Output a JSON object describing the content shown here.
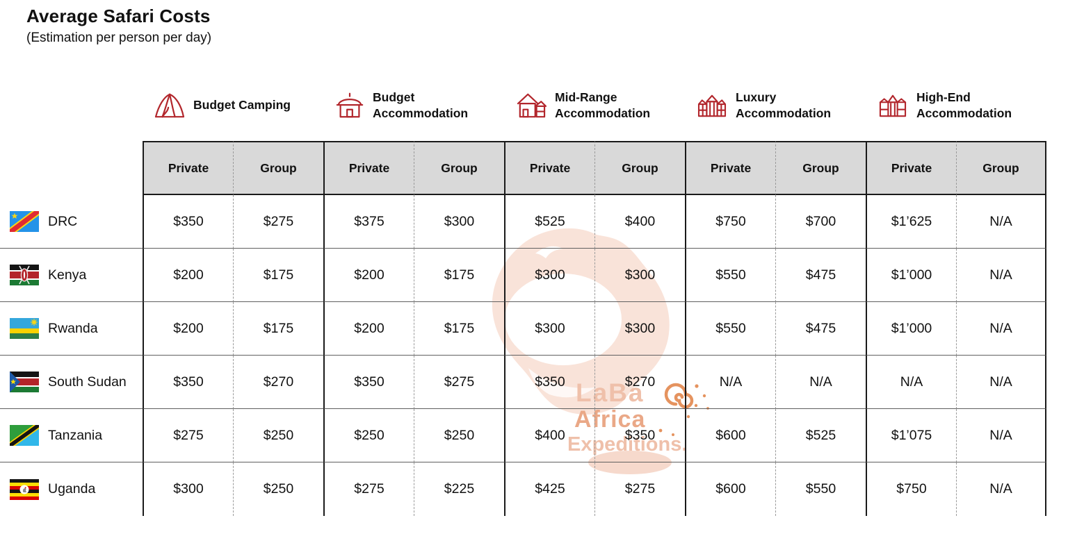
{
  "title": "Average Safari Costs",
  "subtitle": "(Estimation per person per day)",
  "colors": {
    "accent_red": "#b2262c",
    "header_bg": "#d9d9d9",
    "border_dark": "#1a1a1a",
    "row_line": "#5f5f5f",
    "dash_line": "#9a9a9a",
    "watermark_blob": "#f9e3d9",
    "watermark_text": "#efc0aa",
    "watermark_orange": "#e5935f"
  },
  "categories": [
    {
      "icon": "tent-icon",
      "label": "Budget Camping",
      "lines": [
        "Budget Camping"
      ]
    },
    {
      "icon": "hut-icon",
      "label": "Budget Accommodation",
      "lines": [
        "Budget",
        "Accommodation"
      ]
    },
    {
      "icon": "house-icon",
      "label": "Mid-Range Accommodation",
      "lines": [
        "Mid-Range",
        "Accommodation"
      ]
    },
    {
      "icon": "villa-icon",
      "label": "Luxury Accommodation",
      "lines": [
        "Luxury",
        "Accommodation"
      ]
    },
    {
      "icon": "mansion-icon",
      "label": "High-End Accommodation",
      "lines": [
        "High-End",
        "Accommodation"
      ]
    }
  ],
  "sub_columns": [
    "Private",
    "Group"
  ],
  "rows": [
    {
      "country": "DRC",
      "flag": "drc",
      "values": [
        "$350",
        "$275",
        "$375",
        "$300",
        "$525",
        "$400",
        "$750",
        "$700",
        "$1’625",
        "N/A"
      ]
    },
    {
      "country": "Kenya",
      "flag": "kenya",
      "values": [
        "$200",
        "$175",
        "$200",
        "$175",
        "$300",
        "$300",
        "$550",
        "$475",
        "$1’000",
        "N/A"
      ]
    },
    {
      "country": "Rwanda",
      "flag": "rwanda",
      "values": [
        "$200",
        "$175",
        "$200",
        "$175",
        "$300",
        "$300",
        "$550",
        "$475",
        "$1’000",
        "N/A"
      ]
    },
    {
      "country": "South Sudan",
      "flag": "south-sudan",
      "values": [
        "$350",
        "$270",
        "$350",
        "$275",
        "$350",
        "$270",
        "N/A",
        "N/A",
        "N/A",
        "N/A"
      ]
    },
    {
      "country": "Tanzania",
      "flag": "tanzania",
      "values": [
        "$275",
        "$250",
        "$250",
        "$250",
        "$400",
        "$350",
        "$600",
        "$525",
        "$1’075",
        "N/A"
      ]
    },
    {
      "country": "Uganda",
      "flag": "uganda",
      "values": [
        "$300",
        "$250",
        "$275",
        "$225",
        "$425",
        "$275",
        "$600",
        "$550",
        "$750",
        "N/A"
      ]
    }
  ],
  "watermark": {
    "lines": [
      "LaBa",
      "Africa",
      "Expeditions."
    ]
  },
  "chart_data": {
    "type": "table",
    "title": "Average Safari Costs",
    "subtitle": "(Estimation per person per day)",
    "column_groups": [
      "Budget Camping",
      "Budget Accommodation",
      "Mid-Range Accommodation",
      "Luxury Accommodation",
      "High-End Accommodation"
    ],
    "sub_columns": [
      "Private",
      "Group"
    ],
    "row_labels": [
      "DRC",
      "Kenya",
      "Rwanda",
      "South Sudan",
      "Tanzania",
      "Uganda"
    ],
    "values_usd_per_person_per_day": [
      [
        350,
        275,
        375,
        300,
        525,
        400,
        750,
        700,
        1625,
        null
      ],
      [
        200,
        175,
        200,
        175,
        300,
        300,
        550,
        475,
        1000,
        null
      ],
      [
        200,
        175,
        200,
        175,
        300,
        300,
        550,
        475,
        1000,
        null
      ],
      [
        350,
        270,
        350,
        275,
        350,
        270,
        null,
        null,
        null,
        null
      ],
      [
        275,
        250,
        250,
        250,
        400,
        350,
        600,
        525,
        1075,
        null
      ],
      [
        300,
        250,
        275,
        225,
        425,
        275,
        600,
        550,
        750,
        null
      ]
    ],
    "na_label": "N/A"
  }
}
